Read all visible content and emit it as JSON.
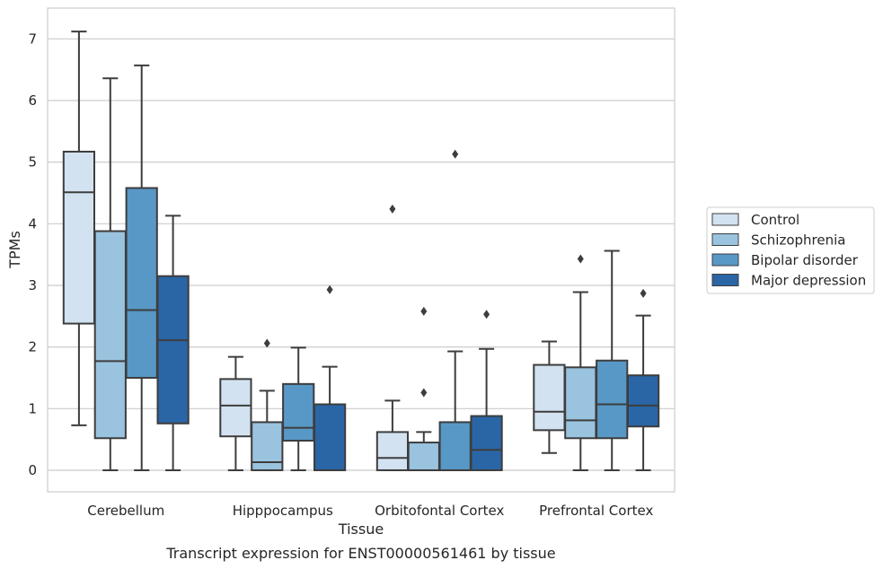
{
  "caption": "Transcript expression for ENST00000561461 by tissue",
  "chart_data": {
    "type": "box",
    "title": "",
    "xlabel": "Tissue",
    "ylabel": "TPMs",
    "ylim": [
      -0.35,
      7.5
    ],
    "yticks": [
      "0",
      "1",
      "2",
      "3",
      "4",
      "5",
      "6",
      "7"
    ],
    "grid": "horizontal",
    "legend_position": "right",
    "categories": [
      "Cerebellum",
      "Hipppocampus",
      "Orbitofontal Cortex",
      "Prefrontal Cortex"
    ],
    "series": [
      {
        "name": "Control",
        "color": "#d3e2f1",
        "boxes": [
          {
            "whislo": 0.73,
            "q1": 2.38,
            "med": 4.51,
            "q3": 5.17,
            "whishi": 7.12,
            "fliers": []
          },
          {
            "whislo": 0.0,
            "q1": 0.55,
            "med": 1.05,
            "q3": 1.48,
            "whishi": 1.84,
            "fliers": []
          },
          {
            "whislo": 0.0,
            "q1": 0.0,
            "med": 0.2,
            "q3": 0.62,
            "whishi": 1.13,
            "fliers": [
              4.24
            ]
          },
          {
            "whislo": 0.28,
            "q1": 0.65,
            "med": 0.95,
            "q3": 1.71,
            "whishi": 2.09,
            "fliers": []
          }
        ]
      },
      {
        "name": "Schizophrenia",
        "color": "#9ac3df",
        "boxes": [
          {
            "whislo": 0.0,
            "q1": 0.52,
            "med": 1.77,
            "q3": 3.88,
            "whishi": 6.36,
            "fliers": []
          },
          {
            "whislo": 0.0,
            "q1": 0.0,
            "med": 0.13,
            "q3": 0.78,
            "whishi": 1.29,
            "fliers": [
              2.06
            ]
          },
          {
            "whislo": 0.0,
            "q1": 0.0,
            "med": 0.0,
            "q3": 0.45,
            "whishi": 0.62,
            "fliers": [
              1.26,
              2.58
            ]
          },
          {
            "whislo": 0.0,
            "q1": 0.52,
            "med": 0.81,
            "q3": 1.67,
            "whishi": 2.89,
            "fliers": [
              3.43
            ]
          }
        ]
      },
      {
        "name": "Bipolar disorder",
        "color": "#5898c6",
        "boxes": [
          {
            "whislo": 0.0,
            "q1": 1.5,
            "med": 2.6,
            "q3": 4.58,
            "whishi": 6.57,
            "fliers": []
          },
          {
            "whislo": 0.0,
            "q1": 0.48,
            "med": 0.69,
            "q3": 1.4,
            "whishi": 1.99,
            "fliers": []
          },
          {
            "whislo": 0.0,
            "q1": 0.0,
            "med": 0.0,
            "q3": 0.78,
            "whishi": 1.93,
            "fliers": [
              5.13
            ]
          },
          {
            "whislo": 0.0,
            "q1": 0.52,
            "med": 1.07,
            "q3": 1.78,
            "whishi": 3.56,
            "fliers": []
          }
        ]
      },
      {
        "name": "Major depression",
        "color": "#2a66a5",
        "boxes": [
          {
            "whislo": 0.0,
            "q1": 0.76,
            "med": 2.11,
            "q3": 3.15,
            "whishi": 4.13,
            "fliers": []
          },
          {
            "whislo": 0.0,
            "q1": 0.0,
            "med": 0.0,
            "q3": 1.07,
            "whishi": 1.68,
            "fliers": [
              2.93
            ]
          },
          {
            "whislo": 0.0,
            "q1": 0.0,
            "med": 0.33,
            "q3": 0.88,
            "whishi": 1.97,
            "fliers": [
              2.53
            ]
          },
          {
            "whislo": 0.0,
            "q1": 0.71,
            "med": 1.05,
            "q3": 1.54,
            "whishi": 2.51,
            "fliers": [
              2.87
            ]
          }
        ]
      }
    ]
  }
}
